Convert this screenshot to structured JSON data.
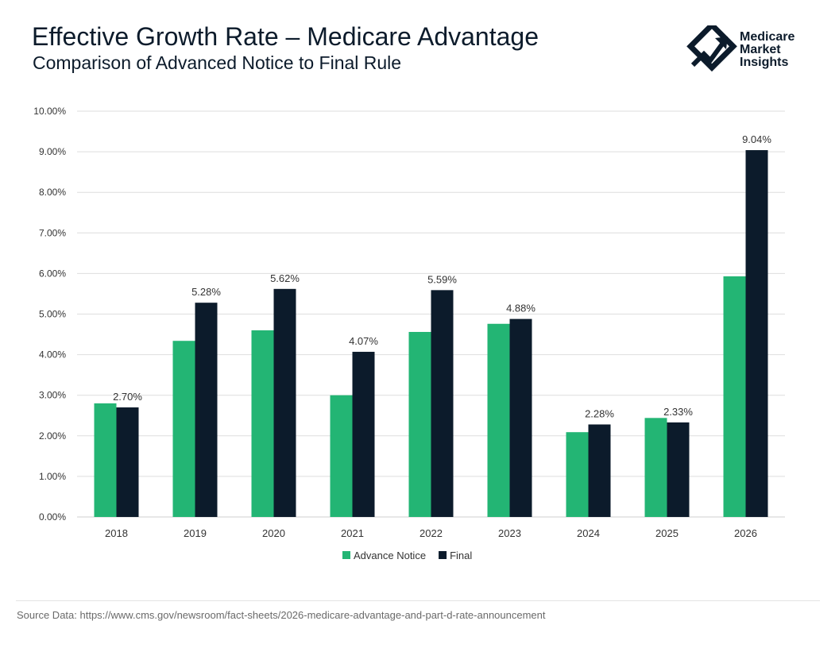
{
  "header": {
    "title": "Effective Growth Rate – Medicare Advantage",
    "subtitle": "Comparison of Advanced Notice to Final Rule"
  },
  "logo": {
    "lines": [
      "Medicare",
      "Market",
      "Insights"
    ]
  },
  "colors": {
    "advance_notice": "#23b574",
    "final": "#0c1b2b",
    "grid": "#dedede",
    "text": "#333333"
  },
  "chart_data": {
    "type": "bar",
    "categories": [
      "2018",
      "2019",
      "2020",
      "2021",
      "2022",
      "2023",
      "2024",
      "2025",
      "2026"
    ],
    "series": [
      {
        "name": "Advance Notice",
        "values": [
          2.8,
          4.34,
          4.6,
          3.0,
          4.56,
          4.76,
          2.09,
          2.44,
          5.93
        ],
        "labels": [
          null,
          null,
          null,
          null,
          null,
          null,
          null,
          null,
          null
        ]
      },
      {
        "name": "Final",
        "values": [
          2.7,
          5.28,
          5.62,
          4.07,
          5.59,
          4.88,
          2.28,
          2.33,
          9.04
        ],
        "labels": [
          "2.70%",
          "5.28%",
          "5.62%",
          "4.07%",
          "5.59%",
          "4.88%",
          "2.28%",
          "2.33%",
          "9.04%"
        ]
      }
    ],
    "ylim": [
      0,
      10
    ],
    "yticks": [
      "0.00%",
      "1.00%",
      "2.00%",
      "3.00%",
      "4.00%",
      "5.00%",
      "6.00%",
      "7.00%",
      "8.00%",
      "9.00%",
      "10.00%"
    ],
    "grid": true,
    "legend_position": "bottom-center"
  },
  "footer": {
    "source": "Source Data: https://www.cms.gov/newsroom/fact-sheets/2026-medicare-advantage-and-part-d-rate-announcement"
  }
}
